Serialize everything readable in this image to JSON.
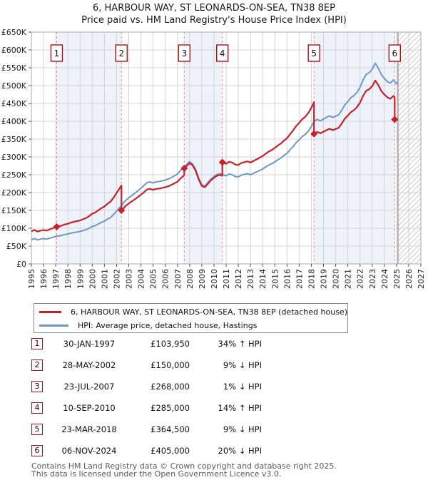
{
  "page": {
    "title_line1": "6, HARBOUR WAY, ST LEONARDS-ON-SEA, TN38 8EP",
    "title_line2": "Price paid vs. HM Land Registry's House Price Index (HPI)",
    "footer_line1": "Contains HM Land Registry data © Crown copyright and database right 2025.",
    "footer_line2": "This data is licensed under the Open Government Licence v3.0."
  },
  "legend": {
    "items": [
      {
        "label": "6, HARBOUR WAY, ST LEONARDS-ON-SEA, TN38 8EP (detached house)",
        "color": "#c8202a"
      },
      {
        "label": "HPI: Average price, detached house, Hastings",
        "color": "#7097c9"
      }
    ]
  },
  "table": {
    "rows": [
      {
        "n": "1",
        "date": "30-JAN-1997",
        "price": "£103,950",
        "delta": "34% ↑ HPI"
      },
      {
        "n": "2",
        "date": "28-MAY-2002",
        "price": "£150,000",
        "delta": "9% ↓ HPI"
      },
      {
        "n": "3",
        "date": "23-JUL-2007",
        "price": "£268,000",
        "delta": "1% ↓ HPI"
      },
      {
        "n": "4",
        "date": "10-SEP-2010",
        "price": "£285,000",
        "delta": "14% ↑ HPI"
      },
      {
        "n": "5",
        "date": "23-MAR-2018",
        "price": "£364,500",
        "delta": "9% ↓ HPI"
      },
      {
        "n": "6",
        "date": "06-NOV-2024",
        "price": "£405,000",
        "delta": "20% ↓ HPI"
      }
    ]
  },
  "chart_data": {
    "type": "line",
    "x_min": 1995,
    "x_max": 2027,
    "y_min": 0,
    "y_max": 650000,
    "y_tick_step": 50000,
    "y_tick_labels": [
      "£0",
      "£50K",
      "£100K",
      "£150K",
      "£200K",
      "£250K",
      "£300K",
      "£350K",
      "£400K",
      "£450K",
      "£500K",
      "£550K",
      "£600K",
      "£650K"
    ],
    "x_tick_labels": [
      "1995",
      "1996",
      "1997",
      "1998",
      "1999",
      "2000",
      "2001",
      "2002",
      "2003",
      "2004",
      "2005",
      "2006",
      "2007",
      "2008",
      "2009",
      "2010",
      "2011",
      "2012",
      "2013",
      "2014",
      "2015",
      "2016",
      "2017",
      "2018",
      "2019",
      "2020",
      "2021",
      "2022",
      "2023",
      "2024",
      "2025",
      "2026",
      "2027"
    ],
    "hatch_start": 2025.12,
    "colors": {
      "property_line": "#c8202a",
      "hpi_line": "#7097c9",
      "band": "#eef2fa",
      "sale_dash_line": "#ee8c8c",
      "today_line": "#999999",
      "grid": "#d4d4d4",
      "plot_border": "#aaaaaa",
      "hatch": "#cbcbcb",
      "marker_box_border": "#aa1116"
    },
    "series_names": {
      "property": "6, HARBOUR WAY, ST LEONARDS-ON-SEA, TN38 8EP (detached house)",
      "hpi": "HPI: Average price, detached house, Hastings"
    },
    "sales": [
      {
        "n": "1",
        "x": 1997.08,
        "price": 103950,
        "date": "30-JAN-1997"
      },
      {
        "n": "2",
        "x": 2002.4,
        "price": 150000,
        "date": "28-MAY-2002"
      },
      {
        "n": "3",
        "x": 2007.56,
        "price": 268000,
        "date": "23-JUL-2007"
      },
      {
        "n": "4",
        "x": 2010.69,
        "price": 285000,
        "date": "10-SEP-2010"
      },
      {
        "n": "5",
        "x": 2018.22,
        "price": 364500,
        "date": "23-MAR-2018"
      },
      {
        "n": "6",
        "x": 2024.85,
        "price": 405000,
        "date": "06-NOV-2024"
      }
    ],
    "hpi": [
      [
        1995.0,
        68000
      ],
      [
        1995.25,
        71000
      ],
      [
        1995.5,
        67500
      ],
      [
        1995.75,
        69500
      ],
      [
        1996.0,
        71000
      ],
      [
        1996.25,
        69500
      ],
      [
        1996.5,
        72000
      ],
      [
        1996.75,
        74500
      ],
      [
        1997.0,
        77000
      ],
      [
        1997.25,
        78500
      ],
      [
        1997.5,
        80000
      ],
      [
        1997.75,
        82500
      ],
      [
        1998.0,
        84000
      ],
      [
        1998.25,
        86500
      ],
      [
        1998.5,
        88000
      ],
      [
        1998.75,
        89500
      ],
      [
        1999.0,
        91000
      ],
      [
        1999.25,
        93500
      ],
      [
        1999.5,
        96000
      ],
      [
        1999.75,
        100000
      ],
      [
        2000.0,
        105000
      ],
      [
        2000.25,
        107500
      ],
      [
        2000.5,
        112000
      ],
      [
        2000.75,
        116500
      ],
      [
        2001.0,
        120000
      ],
      [
        2001.25,
        125500
      ],
      [
        2001.5,
        130000
      ],
      [
        2001.75,
        138500
      ],
      [
        2002.0,
        148000
      ],
      [
        2002.25,
        158000
      ],
      [
        2002.5,
        168000
      ],
      [
        2002.75,
        178000
      ],
      [
        2003.0,
        185000
      ],
      [
        2003.25,
        192000
      ],
      [
        2003.5,
        198000
      ],
      [
        2003.75,
        205000
      ],
      [
        2004.0,
        212000
      ],
      [
        2004.25,
        220000
      ],
      [
        2004.5,
        228000
      ],
      [
        2004.75,
        230000
      ],
      [
        2005.0,
        227000
      ],
      [
        2005.25,
        230000
      ],
      [
        2005.5,
        231000
      ],
      [
        2005.75,
        233000
      ],
      [
        2006.0,
        235000
      ],
      [
        2006.25,
        238000
      ],
      [
        2006.5,
        242000
      ],
      [
        2006.75,
        247000
      ],
      [
        2007.0,
        252000
      ],
      [
        2007.25,
        262000
      ],
      [
        2007.5,
        270000
      ],
      [
        2007.75,
        278000
      ],
      [
        2008.0,
        287000
      ],
      [
        2008.25,
        280000
      ],
      [
        2008.5,
        265000
      ],
      [
        2008.75,
        240000
      ],
      [
        2009.0,
        222000
      ],
      [
        2009.25,
        218000
      ],
      [
        2009.5,
        228000
      ],
      [
        2009.75,
        238000
      ],
      [
        2010.0,
        245000
      ],
      [
        2010.25,
        251000
      ],
      [
        2010.5,
        253000
      ],
      [
        2010.75,
        250000
      ],
      [
        2011.0,
        247000
      ],
      [
        2011.25,
        252000
      ],
      [
        2011.5,
        250000
      ],
      [
        2011.75,
        245000
      ],
      [
        2012.0,
        244000
      ],
      [
        2012.25,
        249000
      ],
      [
        2012.5,
        251000
      ],
      [
        2012.75,
        253000
      ],
      [
        2013.0,
        250000
      ],
      [
        2013.25,
        254000
      ],
      [
        2013.5,
        258000
      ],
      [
        2013.75,
        262000
      ],
      [
        2014.0,
        266000
      ],
      [
        2014.25,
        272000
      ],
      [
        2014.5,
        277000
      ],
      [
        2014.75,
        281000
      ],
      [
        2015.0,
        286000
      ],
      [
        2015.25,
        292000
      ],
      [
        2015.5,
        297000
      ],
      [
        2015.75,
        304000
      ],
      [
        2016.0,
        310000
      ],
      [
        2016.25,
        320000
      ],
      [
        2016.5,
        329000
      ],
      [
        2016.75,
        340000
      ],
      [
        2017.0,
        348000
      ],
      [
        2017.25,
        357000
      ],
      [
        2017.5,
        363000
      ],
      [
        2017.75,
        372000
      ],
      [
        2018.0,
        385000
      ],
      [
        2018.25,
        401000
      ],
      [
        2018.5,
        405000
      ],
      [
        2018.75,
        401000
      ],
      [
        2019.0,
        406000
      ],
      [
        2019.25,
        411000
      ],
      [
        2019.5,
        415000
      ],
      [
        2019.75,
        411000
      ],
      [
        2020.0,
        414000
      ],
      [
        2020.25,
        418000
      ],
      [
        2020.5,
        431000
      ],
      [
        2020.75,
        446000
      ],
      [
        2021.0,
        455000
      ],
      [
        2021.25,
        466000
      ],
      [
        2021.5,
        472000
      ],
      [
        2021.75,
        481000
      ],
      [
        2022.0,
        495000
      ],
      [
        2022.25,
        516000
      ],
      [
        2022.5,
        531000
      ],
      [
        2022.75,
        536000
      ],
      [
        2023.0,
        546000
      ],
      [
        2023.25,
        563000
      ],
      [
        2023.5,
        549000
      ],
      [
        2023.75,
        531000
      ],
      [
        2024.0,
        520000
      ],
      [
        2024.25,
        511000
      ],
      [
        2024.5,
        507000
      ],
      [
        2024.75,
        516000
      ],
      [
        2025.0,
        505000
      ],
      [
        2025.12,
        511000
      ]
    ]
  }
}
